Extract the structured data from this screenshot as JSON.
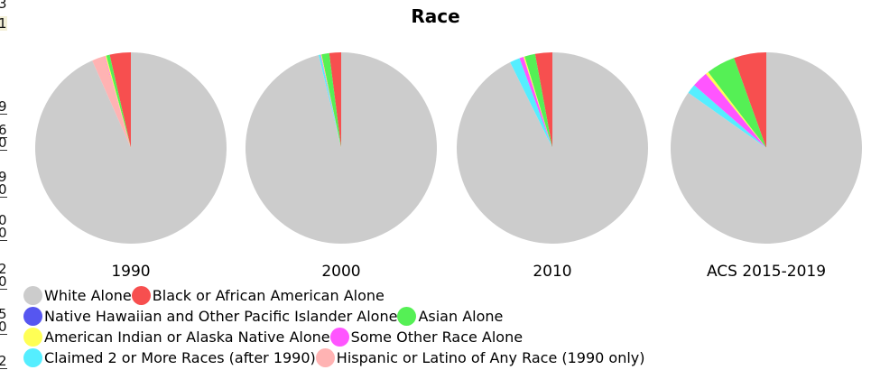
{
  "left_fragments": [
    "3",
    "1",
    "9",
    "6",
    "0",
    "9",
    "0",
    "0",
    "0",
    "2",
    "0",
    "5",
    "0",
    "2"
  ],
  "chart_data": {
    "type": "pie",
    "title": "Race",
    "legend_position": "bottom-left",
    "categories": [
      "White Alone",
      "Black or African American Alone",
      "Native Hawaiian and Other Pacific Islander Alone",
      "Asian Alone",
      "American Indian or Alaska Native Alone",
      "Some Other Race Alone",
      "Claimed 2 or More Races (after 1990)",
      "Hispanic or Latino of Any Race (1990 only)"
    ],
    "colors": [
      "#cccccc",
      "#f74f4f",
      "#5656f0",
      "#55f055",
      "#ffff55",
      "#ff55ff",
      "#55eeff",
      "#ffb3b3"
    ],
    "series": [
      {
        "name": "1990",
        "values": [
          94.3,
          3.6,
          0.0,
          0.6,
          0.2,
          0.1,
          0.0,
          2.2
        ]
      },
      {
        "name": "2000",
        "values": [
          96.2,
          2.0,
          0.0,
          1.3,
          0.1,
          0.1,
          0.3,
          0.0
        ]
      },
      {
        "name": "2010",
        "values": [
          92.7,
          2.9,
          0.0,
          1.8,
          0.2,
          0.7,
          1.7,
          0.0
        ]
      },
      {
        "name": "ACS 2015-2019",
        "values": [
          84.8,
          5.5,
          0.0,
          4.9,
          0.5,
          2.7,
          1.6,
          0.0
        ]
      }
    ]
  },
  "legend_rows": [
    [
      0,
      1
    ],
    [
      2,
      3
    ],
    [
      4,
      5
    ],
    [
      6,
      7
    ]
  ]
}
